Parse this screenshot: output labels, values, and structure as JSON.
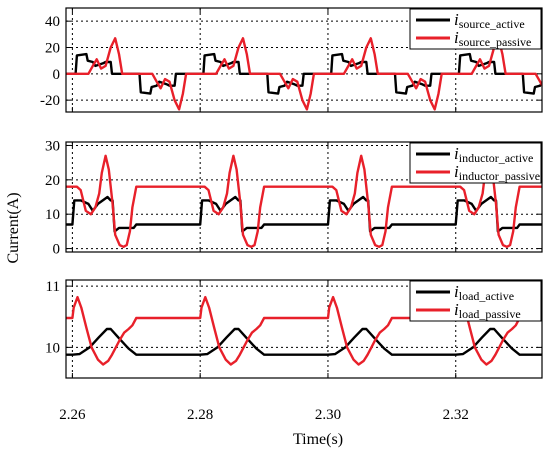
{
  "chart_data": {
    "type": "line",
    "xlabel": "Time(s)",
    "ylabel": "Current(A)",
    "xlim": [
      2.259,
      2.3335
    ],
    "x_ticks": [
      "2.26",
      "2.28",
      "2.30",
      "2.32"
    ],
    "x_tick_values": [
      2.26,
      2.28,
      2.3,
      2.32
    ],
    "grid": "dotted",
    "period": 0.02,
    "subplots": [
      {
        "id": "source",
        "ylim": [
          -29,
          50
        ],
        "y_ticks": [
          "40",
          "20",
          "0",
          "-20"
        ],
        "y_tick_values": [
          40,
          20,
          0,
          -20
        ],
        "legend_position": "top-right",
        "series": [
          {
            "symbol": "i",
            "subscript": "source_active",
            "color": "#000000",
            "x": [
              2.26,
              2.2605,
              2.2607,
              2.2622,
              2.2624,
              2.2632,
              2.2636,
              2.2648,
              2.2652,
              2.266,
              2.2662,
              2.2705,
              2.2707,
              2.2722,
              2.2724,
              2.2732,
              2.2736,
              2.2748,
              2.2752,
              2.276,
              2.2762,
              2.28
            ],
            "y": [
              0,
              0,
              14,
              15,
              10,
              9,
              6,
              8,
              9,
              9,
              0,
              0,
              -14,
              -15,
              -10,
              -9,
              -6,
              -8,
              -9,
              -9,
              0,
              0
            ]
          },
          {
            "symbol": "i",
            "subscript": "source_passive",
            "color": "#e8202a",
            "x": [
              2.26,
              2.2625,
              2.2632,
              2.2638,
              2.2645,
              2.2652,
              2.266,
              2.2667,
              2.2673,
              2.2678,
              2.2725,
              2.2732,
              2.2738,
              2.2745,
              2.2752,
              2.276,
              2.2767,
              2.2773,
              2.2778,
              2.28
            ],
            "y": [
              0,
              0,
              6,
              11,
              4,
              6,
              20,
              27,
              15,
              0,
              0,
              -6,
              -11,
              -4,
              -6,
              -20,
              -27,
              -15,
              0,
              0
            ]
          }
        ]
      },
      {
        "id": "inductor",
        "ylim": [
          -1,
          31
        ],
        "y_ticks": [
          "30",
          "20",
          "10",
          "0"
        ],
        "y_tick_values": [
          30,
          20,
          10,
          0
        ],
        "legend_position": "top-right",
        "series": [
          {
            "symbol": "i",
            "subscript": "inductor_active",
            "color": "#000000",
            "x": [
              2.26,
              2.2603,
              2.2613,
              2.2625,
              2.2632,
              2.264,
              2.2655,
              2.266,
              2.2663,
              2.2666,
              2.2673,
              2.2688,
              2.2696,
              2.27
            ],
            "y": [
              7,
              14,
              14,
              13,
              11,
              13,
              15,
              14,
              14,
              5,
              6,
              6,
              6,
              7
            ]
          },
          {
            "symbol": "i",
            "subscript": "inductor_passive",
            "color": "#e8202a",
            "x": [
              2.26,
              2.2607,
              2.2613,
              2.2621,
              2.2629,
              2.2636,
              2.2642,
              2.2646,
              2.2652,
              2.2657,
              2.2663,
              2.2667,
              2.2674,
              2.268,
              2.2685,
              2.269,
              2.2694,
              2.27
            ],
            "y": [
              18,
              18,
              17,
              11,
              10,
              12,
              16,
              22,
              27,
              23,
              13,
              4,
              1,
              0.5,
              1,
              5,
              12,
              18
            ]
          }
        ]
      },
      {
        "id": "load",
        "ylim": [
          9.5,
          11.1
        ],
        "y_ticks": [
          "11",
          "10"
        ],
        "y_tick_values": [
          11,
          10
        ],
        "legend_position": "top-right",
        "series": [
          {
            "symbol": "i",
            "subscript": "load_active",
            "color": "#000000",
            "x": [
              2.26,
              2.2611,
              2.2627,
              2.2641,
              2.2654,
              2.266,
              2.2672,
              2.2688,
              2.27
            ],
            "y": [
              9.88,
              9.89,
              10.0,
              10.16,
              10.3,
              10.3,
              10.16,
              9.98,
              9.88
            ]
          },
          {
            "symbol": "i",
            "subscript": "load_passive",
            "color": "#e8202a",
            "x": [
              2.26,
              2.2602,
              2.2608,
              2.2614,
              2.2622,
              2.263,
              2.264,
              2.2648,
              2.2656,
              2.2662,
              2.2668,
              2.2674,
              2.2681,
              2.2688,
              2.2694,
              2.27
            ],
            "y": [
              10.48,
              10.65,
              10.82,
              10.65,
              10.32,
              10.0,
              9.8,
              9.72,
              9.78,
              9.88,
              10.0,
              10.12,
              10.24,
              10.3,
              10.36,
              10.48
            ]
          }
        ]
      }
    ]
  }
}
